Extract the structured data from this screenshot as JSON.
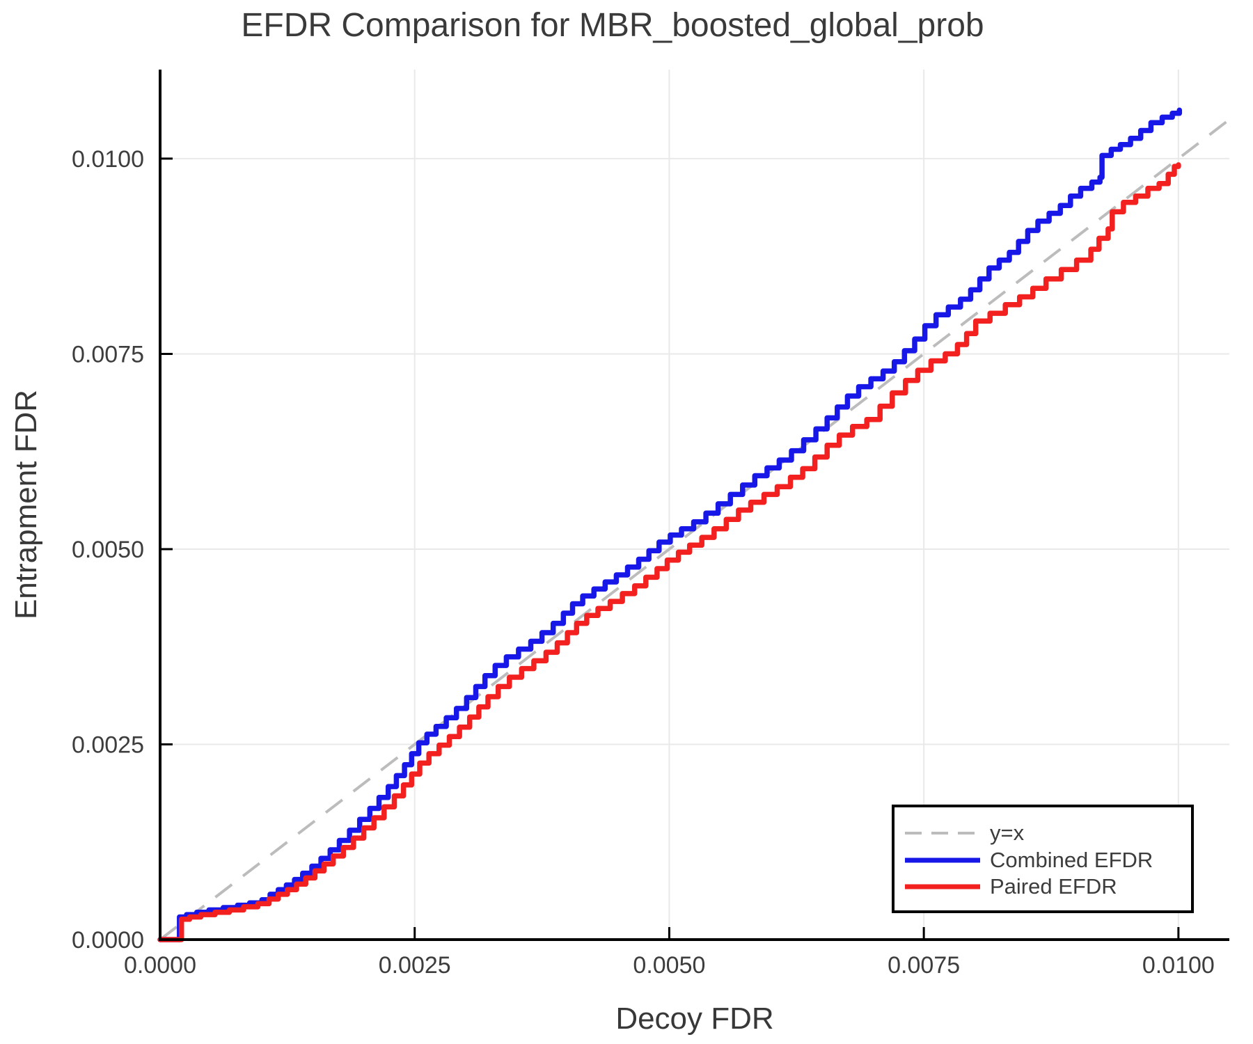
{
  "colors": {
    "combined": "#1717e8",
    "paired": "#f32020",
    "identity": "#bcbcbc",
    "grid": "#e9e9e9",
    "spine": "#000000",
    "text": "#3d3d3d",
    "legend_border": "#000000",
    "background": "#ffffff"
  },
  "legend": {
    "items": [
      {
        "label": "y=x",
        "color": "#bcbcbc",
        "dashed": true
      },
      {
        "label": "Combined EFDR",
        "color": "#1717e8",
        "dashed": false
      },
      {
        "label": "Paired EFDR",
        "color": "#f32020",
        "dashed": false
      }
    ]
  },
  "chart_data": {
    "type": "line",
    "title": "EFDR Comparison for MBR_boosted_global_prob",
    "xlabel": "Decoy FDR",
    "ylabel": "Entrapment FDR",
    "xlim": [
      0,
      0.0105
    ],
    "ylim": [
      0,
      0.01114
    ],
    "x_ticks": [
      0,
      0.0025,
      0.005,
      0.0075,
      0.01
    ],
    "x_tick_labels": [
      "0.0000",
      "0.0025",
      "0.0050",
      "0.0075",
      "0.0100"
    ],
    "y_ticks": [
      0,
      0.0025,
      0.005,
      0.0075,
      0.01
    ],
    "y_tick_labels": [
      "0.0000",
      "0.0025",
      "0.0050",
      "0.0075",
      "0.0100"
    ],
    "grid": true,
    "legend_position": "bottom-right",
    "value_unit": 0.0001,
    "series": [
      {
        "name": "y=x",
        "style": "dashed",
        "color": "#bcbcbc",
        "points": [
          [
            0,
            0
          ],
          [
            105,
            105
          ]
        ]
      },
      {
        "name": "Combined EFDR",
        "style": "step",
        "color": "#1717e8",
        "points": [
          [
            0,
            0
          ],
          [
            1.9,
            0
          ],
          [
            1.9,
            2.9
          ],
          [
            2.6,
            3.2
          ],
          [
            3.6,
            3.5
          ],
          [
            4.8,
            3.8
          ],
          [
            6.2,
            4.1
          ],
          [
            7.6,
            4.4
          ],
          [
            8.8,
            4.7
          ],
          [
            10,
            5.1
          ],
          [
            10.8,
            5.8
          ],
          [
            11.6,
            6.4
          ],
          [
            12.4,
            7
          ],
          [
            13.2,
            7.7
          ],
          [
            14,
            8.5
          ],
          [
            14.9,
            9.4
          ],
          [
            15.8,
            10.4
          ],
          [
            16.7,
            11.5
          ],
          [
            17.6,
            12.7
          ],
          [
            18.6,
            14
          ],
          [
            19.6,
            15.4
          ],
          [
            20.6,
            16.8
          ],
          [
            21.5,
            18.2
          ],
          [
            22.4,
            19.6
          ],
          [
            23.2,
            21
          ],
          [
            24,
            22.4
          ],
          [
            24.7,
            23.8
          ],
          [
            25.4,
            25.2
          ],
          [
            26.2,
            26.3
          ],
          [
            27.1,
            27.3
          ],
          [
            28.1,
            28.4
          ],
          [
            29.1,
            29.6
          ],
          [
            30.1,
            31
          ],
          [
            31,
            32.4
          ],
          [
            31.9,
            33.8
          ],
          [
            32.9,
            35.1
          ],
          [
            34,
            36.2
          ],
          [
            35.2,
            37.2
          ],
          [
            36.4,
            38.2
          ],
          [
            37.5,
            39.3
          ],
          [
            38.6,
            40.5
          ],
          [
            39.6,
            41.8
          ],
          [
            40.5,
            43
          ],
          [
            41.5,
            44
          ],
          [
            42.6,
            44.9
          ],
          [
            43.7,
            45.8
          ],
          [
            44.8,
            46.7
          ],
          [
            45.9,
            47.7
          ],
          [
            47,
            48.7
          ],
          [
            48,
            49.8
          ],
          [
            49,
            50.9
          ],
          [
            50.1,
            51.8
          ],
          [
            51.2,
            52.6
          ],
          [
            52.4,
            53.5
          ],
          [
            53.6,
            54.6
          ],
          [
            54.8,
            55.8
          ],
          [
            56,
            57
          ],
          [
            57.2,
            58.2
          ],
          [
            58.4,
            59.4
          ],
          [
            59.6,
            60.4
          ],
          [
            60.8,
            61.4
          ],
          [
            62,
            62.6
          ],
          [
            63.2,
            64
          ],
          [
            64.4,
            65.4
          ],
          [
            65.5,
            66.8
          ],
          [
            66.5,
            68.2
          ],
          [
            67.5,
            69.6
          ],
          [
            68.6,
            70.8
          ],
          [
            69.8,
            71.8
          ],
          [
            71,
            72.8
          ],
          [
            72.1,
            74
          ],
          [
            73.1,
            75.4
          ],
          [
            74.1,
            76.9
          ],
          [
            75.1,
            78.6
          ],
          [
            76.2,
            80
          ],
          [
            77.4,
            81
          ],
          [
            78.6,
            82
          ],
          [
            79.6,
            83.2
          ],
          [
            80.5,
            84.6
          ],
          [
            81.4,
            86
          ],
          [
            82.4,
            87
          ],
          [
            83.4,
            88
          ],
          [
            84.3,
            89.4
          ],
          [
            85.2,
            90.8
          ],
          [
            86.2,
            92
          ],
          [
            87.3,
            93
          ],
          [
            88.4,
            94
          ],
          [
            89.4,
            95.2
          ],
          [
            90.4,
            96.2
          ],
          [
            91.5,
            97
          ],
          [
            92.3,
            97.6
          ],
          [
            92.5,
            100.4
          ],
          [
            93.4,
            101.2
          ],
          [
            94.3,
            101.8
          ],
          [
            95.3,
            102.6
          ],
          [
            96.3,
            103.6
          ],
          [
            97.3,
            104.6
          ],
          [
            98.4,
            105.3
          ],
          [
            99.4,
            105.8
          ],
          [
            100.1,
            106.2
          ]
        ]
      },
      {
        "name": "Paired EFDR",
        "style": "step",
        "color": "#f32020",
        "points": [
          [
            0,
            0
          ],
          [
            2.1,
            0
          ],
          [
            2.1,
            2.6
          ],
          [
            2.9,
            2.9
          ],
          [
            4,
            3.2
          ],
          [
            5.4,
            3.5
          ],
          [
            6.8,
            3.8
          ],
          [
            8.2,
            4.2
          ],
          [
            9.6,
            4.6
          ],
          [
            10.7,
            5.2
          ],
          [
            11.6,
            5.8
          ],
          [
            12.5,
            6.4
          ],
          [
            13.4,
            7.1
          ],
          [
            14.3,
            7.9
          ],
          [
            15.2,
            8.8
          ],
          [
            16.1,
            9.7
          ],
          [
            17,
            10.7
          ],
          [
            18,
            11.8
          ],
          [
            19,
            13
          ],
          [
            20,
            14.3
          ],
          [
            21,
            15.6
          ],
          [
            22,
            17
          ],
          [
            23,
            18.4
          ],
          [
            23.9,
            19.8
          ],
          [
            24.7,
            21.2
          ],
          [
            25.5,
            22.6
          ],
          [
            26.4,
            23.8
          ],
          [
            27.4,
            24.9
          ],
          [
            28.4,
            26
          ],
          [
            29.4,
            27.2
          ],
          [
            30.4,
            28.5
          ],
          [
            31.3,
            29.8
          ],
          [
            32.2,
            31.1
          ],
          [
            33.2,
            32.4
          ],
          [
            34.3,
            33.6
          ],
          [
            35.5,
            34.7
          ],
          [
            36.7,
            35.7
          ],
          [
            37.9,
            36.8
          ],
          [
            39,
            38
          ],
          [
            40,
            39.3
          ],
          [
            40.9,
            40.5
          ],
          [
            41.9,
            41.5
          ],
          [
            43,
            42.4
          ],
          [
            44.2,
            43.3
          ],
          [
            45.4,
            44.3
          ],
          [
            46.6,
            45.3
          ],
          [
            47.7,
            46.4
          ],
          [
            48.8,
            47.5
          ],
          [
            49.8,
            48.6
          ],
          [
            50.9,
            49.6
          ],
          [
            52,
            50.5
          ],
          [
            53.2,
            51.5
          ],
          [
            54.4,
            52.6
          ],
          [
            55.6,
            53.8
          ],
          [
            56.8,
            55
          ],
          [
            58,
            56
          ],
          [
            59.3,
            57
          ],
          [
            60.6,
            58
          ],
          [
            61.9,
            59.2
          ],
          [
            63.1,
            60.3
          ],
          [
            64.3,
            61.8
          ],
          [
            65.5,
            63.3
          ],
          [
            66.7,
            64.6
          ],
          [
            68,
            65.7
          ],
          [
            69.4,
            66.6
          ],
          [
            70.7,
            68.3
          ],
          [
            71.9,
            70
          ],
          [
            73.2,
            71.6
          ],
          [
            74.4,
            72.9
          ],
          [
            75.7,
            74.1
          ],
          [
            77.1,
            75
          ],
          [
            78.3,
            76.2
          ],
          [
            79.2,
            77.6
          ],
          [
            80.1,
            79.2
          ],
          [
            81.5,
            80.2
          ],
          [
            83,
            81.3
          ],
          [
            84.4,
            82.3
          ],
          [
            85.7,
            83.4
          ],
          [
            87,
            84.6
          ],
          [
            88.5,
            85.8
          ],
          [
            90,
            87
          ],
          [
            91.4,
            88.4
          ],
          [
            92.2,
            89.8
          ],
          [
            93.1,
            91
          ],
          [
            93.5,
            93.2
          ],
          [
            94.6,
            94.4
          ],
          [
            95.8,
            95.2
          ],
          [
            97,
            96.2
          ],
          [
            98.1,
            96.8
          ],
          [
            99,
            98
          ],
          [
            99.6,
            99
          ],
          [
            100,
            99.2
          ]
        ]
      }
    ]
  }
}
